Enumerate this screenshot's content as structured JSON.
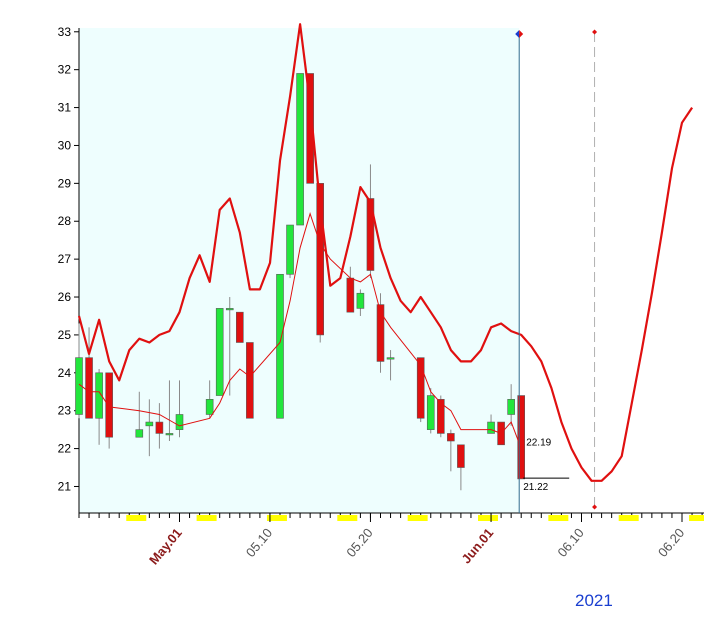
{
  "chart_data": {
    "type": "candlestick",
    "ylim": [
      20.3,
      33.1
    ],
    "yticks": [
      21,
      22,
      23,
      24,
      25,
      26,
      27,
      28,
      29,
      30,
      31,
      32,
      33
    ],
    "x_tick_labels": [
      {
        "label": "May.01",
        "day": 10,
        "kind": "month"
      },
      {
        "label": "05.10",
        "day": 19,
        "kind": "day"
      },
      {
        "label": "05.20",
        "day": 29,
        "kind": "day"
      },
      {
        "label": "Jun.01",
        "day": 41,
        "kind": "month"
      },
      {
        "label": "06.10",
        "day": 50,
        "kind": "day"
      },
      {
        "label": "06.20",
        "day": 60,
        "kind": "day"
      }
    ],
    "year_label": "2021",
    "candles": [
      {
        "d": 0,
        "o": 22.9,
        "h": 25.3,
        "l": 22.8,
        "c": 24.4
      },
      {
        "d": 1,
        "o": 24.4,
        "h": 25.2,
        "l": 22.8,
        "c": 22.8
      },
      {
        "d": 2,
        "o": 22.8,
        "h": 24.1,
        "l": 22.1,
        "c": 24.0
      },
      {
        "d": 3,
        "o": 24.0,
        "h": 24.0,
        "l": 22.0,
        "c": 22.3
      },
      {
        "d": 6,
        "o": 22.3,
        "h": 23.5,
        "l": 22.3,
        "c": 22.5
      },
      {
        "d": 7,
        "o": 22.6,
        "h": 23.3,
        "l": 21.8,
        "c": 22.7
      },
      {
        "d": 8,
        "o": 22.7,
        "h": 23.2,
        "l": 22.0,
        "c": 22.4
      },
      {
        "d": 9,
        "o": 22.4,
        "h": 23.8,
        "l": 22.2,
        "c": 22.4
      },
      {
        "d": 10,
        "o": 22.5,
        "h": 23.8,
        "l": 22.3,
        "c": 22.9
      },
      {
        "d": 13,
        "o": 22.9,
        "h": 23.8,
        "l": 22.8,
        "c": 23.3
      },
      {
        "d": 14,
        "o": 23.4,
        "h": 25.7,
        "l": 23.4,
        "c": 25.7
      },
      {
        "d": 15,
        "o": 25.7,
        "h": 26.0,
        "l": 23.4,
        "c": 25.7
      },
      {
        "d": 16,
        "o": 25.6,
        "h": 25.6,
        "l": 24.8,
        "c": 24.8
      },
      {
        "d": 17,
        "o": 24.8,
        "h": 24.8,
        "l": 22.8,
        "c": 22.8
      },
      {
        "d": 20,
        "o": 22.8,
        "h": 26.6,
        "l": 22.8,
        "c": 26.6
      },
      {
        "d": 21,
        "o": 26.6,
        "h": 27.9,
        "l": 26.5,
        "c": 27.9
      },
      {
        "d": 22,
        "o": 27.9,
        "h": 31.9,
        "l": 27.9,
        "c": 31.9
      },
      {
        "d": 23,
        "o": 31.9,
        "h": 31.9,
        "l": 29.0,
        "c": 29.0
      },
      {
        "d": 24,
        "o": 29.0,
        "h": 29.0,
        "l": 24.8,
        "c": 25.0
      },
      {
        "d": 27,
        "o": 26.5,
        "h": 26.8,
        "l": 25.6,
        "c": 25.6
      },
      {
        "d": 28,
        "o": 25.7,
        "h": 26.2,
        "l": 25.5,
        "c": 26.1
      },
      {
        "d": 29,
        "o": 28.6,
        "h": 29.5,
        "l": 26.5,
        "c": 26.7
      },
      {
        "d": 30,
        "o": 25.8,
        "h": 26.1,
        "l": 24.0,
        "c": 24.3
      },
      {
        "d": 31,
        "o": 24.4,
        "h": 24.6,
        "l": 23.8,
        "c": 24.4
      },
      {
        "d": 34,
        "o": 24.4,
        "h": 24.4,
        "l": 22.7,
        "c": 22.8
      },
      {
        "d": 35,
        "o": 22.5,
        "h": 23.6,
        "l": 22.4,
        "c": 23.4
      },
      {
        "d": 36,
        "o": 23.3,
        "h": 23.4,
        "l": 22.3,
        "c": 22.4
      },
      {
        "d": 37,
        "o": 22.4,
        "h": 22.5,
        "l": 21.4,
        "c": 22.2
      },
      {
        "d": 38,
        "o": 22.1,
        "h": 22.1,
        "l": 20.9,
        "c": 21.5
      },
      {
        "d": 41,
        "o": 22.4,
        "h": 22.9,
        "l": 22.4,
        "c": 22.7
      },
      {
        "d": 42,
        "o": 22.7,
        "h": 22.7,
        "l": 22.1,
        "c": 22.1
      },
      {
        "d": 43,
        "o": 22.9,
        "h": 23.7,
        "l": 22.6,
        "c": 23.3
      },
      {
        "d": 44,
        "o": 23.4,
        "h": 23.4,
        "l": 21.2,
        "c": 21.2
      }
    ],
    "ma_line": [
      {
        "d": 0,
        "v": 23.7
      },
      {
        "d": 1,
        "v": 23.5
      },
      {
        "d": 2,
        "v": 23.5
      },
      {
        "d": 3,
        "v": 23.1
      },
      {
        "d": 6,
        "v": 23.0
      },
      {
        "d": 8,
        "v": 22.9
      },
      {
        "d": 10,
        "v": 22.6
      },
      {
        "d": 13,
        "v": 22.8
      },
      {
        "d": 14,
        "v": 23.2
      },
      {
        "d": 15,
        "v": 23.8
      },
      {
        "d": 16,
        "v": 24.1
      },
      {
        "d": 17,
        "v": 23.9
      },
      {
        "d": 20,
        "v": 24.8
      },
      {
        "d": 21,
        "v": 25.9
      },
      {
        "d": 22,
        "v": 27.3
      },
      {
        "d": 23,
        "v": 28.2
      },
      {
        "d": 24,
        "v": 27.4
      },
      {
        "d": 25,
        "v": 27.0
      },
      {
        "d": 27,
        "v": 26.5
      },
      {
        "d": 28,
        "v": 26.4
      },
      {
        "d": 29,
        "v": 26.6
      },
      {
        "d": 30,
        "v": 25.6
      },
      {
        "d": 31,
        "v": 25.2
      },
      {
        "d": 34,
        "v": 24.2
      },
      {
        "d": 35,
        "v": 23.5
      },
      {
        "d": 36,
        "v": 23.2
      },
      {
        "d": 37,
        "v": 23.0
      },
      {
        "d": 38,
        "v": 22.5
      },
      {
        "d": 41,
        "v": 22.5
      },
      {
        "d": 42,
        "v": 22.4
      },
      {
        "d": 43,
        "v": 22.7
      },
      {
        "d": 44,
        "v": 22.0
      }
    ],
    "forecast_line": [
      {
        "d": 0,
        "v": 25.5
      },
      {
        "d": 1,
        "v": 24.5
      },
      {
        "d": 2,
        "v": 25.4
      },
      {
        "d": 3,
        "v": 24.3
      },
      {
        "d": 4,
        "v": 23.8
      },
      {
        "d": 5,
        "v": 24.6
      },
      {
        "d": 6,
        "v": 24.9
      },
      {
        "d": 7,
        "v": 24.8
      },
      {
        "d": 8,
        "v": 25.0
      },
      {
        "d": 9,
        "v": 25.1
      },
      {
        "d": 10,
        "v": 25.6
      },
      {
        "d": 11,
        "v": 26.5
      },
      {
        "d": 12,
        "v": 27.1
      },
      {
        "d": 13,
        "v": 26.4
      },
      {
        "d": 14,
        "v": 28.3
      },
      {
        "d": 15,
        "v": 28.6
      },
      {
        "d": 16,
        "v": 27.7
      },
      {
        "d": 17,
        "v": 26.2
      },
      {
        "d": 18,
        "v": 26.2
      },
      {
        "d": 19,
        "v": 26.9
      },
      {
        "d": 20,
        "v": 29.6
      },
      {
        "d": 21,
        "v": 31.3
      },
      {
        "d": 22,
        "v": 33.2
      },
      {
        "d": 23,
        "v": 31.1
      },
      {
        "d": 24,
        "v": 28.4
      },
      {
        "d": 25,
        "v": 26.3
      },
      {
        "d": 26,
        "v": 26.5
      },
      {
        "d": 27,
        "v": 27.6
      },
      {
        "d": 28,
        "v": 28.9
      },
      {
        "d": 29,
        "v": 28.5
      },
      {
        "d": 30,
        "v": 27.3
      },
      {
        "d": 31,
        "v": 26.5
      },
      {
        "d": 32,
        "v": 25.9
      },
      {
        "d": 33,
        "v": 25.6
      },
      {
        "d": 34,
        "v": 26.0
      },
      {
        "d": 35,
        "v": 25.6
      },
      {
        "d": 36,
        "v": 25.2
      },
      {
        "d": 37,
        "v": 24.6
      },
      {
        "d": 38,
        "v": 24.3
      },
      {
        "d": 39,
        "v": 24.3
      },
      {
        "d": 40,
        "v": 24.6
      },
      {
        "d": 41,
        "v": 25.2
      },
      {
        "d": 42,
        "v": 25.3
      },
      {
        "d": 43,
        "v": 25.1
      },
      {
        "d": 44,
        "v": 25.0
      },
      {
        "d": 45,
        "v": 24.7
      },
      {
        "d": 46,
        "v": 24.3
      },
      {
        "d": 47,
        "v": 23.6
      },
      {
        "d": 48,
        "v": 22.7
      },
      {
        "d": 49,
        "v": 22.0
      },
      {
        "d": 50,
        "v": 21.5
      },
      {
        "d": 51,
        "v": 21.15
      },
      {
        "d": 52,
        "v": 21.15
      },
      {
        "d": 53,
        "v": 21.4
      },
      {
        "d": 54,
        "v": 21.8
      },
      {
        "d": 55,
        "v": 23.2
      },
      {
        "d": 56,
        "v": 24.6
      },
      {
        "d": 57,
        "v": 26.1
      },
      {
        "d": 58,
        "v": 27.7
      },
      {
        "d": 59,
        "v": 29.4
      },
      {
        "d": 60,
        "v": 30.6
      },
      {
        "d": 61,
        "v": 31.0
      }
    ],
    "annotations": [
      {
        "text": "22.19",
        "d": 44,
        "v": 22.19
      },
      {
        "text": "21.22",
        "d": 44,
        "v": 21.22
      }
    ],
    "history_end_day": 44,
    "projection_marker_day": 51,
    "colors": {
      "up": "#22e63c",
      "down": "#e01010",
      "line": "#e01010",
      "history_bg": "#eefefe",
      "separator": "#2f6b8f",
      "highlight": "#ffff00",
      "year": "#1a3fd0"
    }
  }
}
